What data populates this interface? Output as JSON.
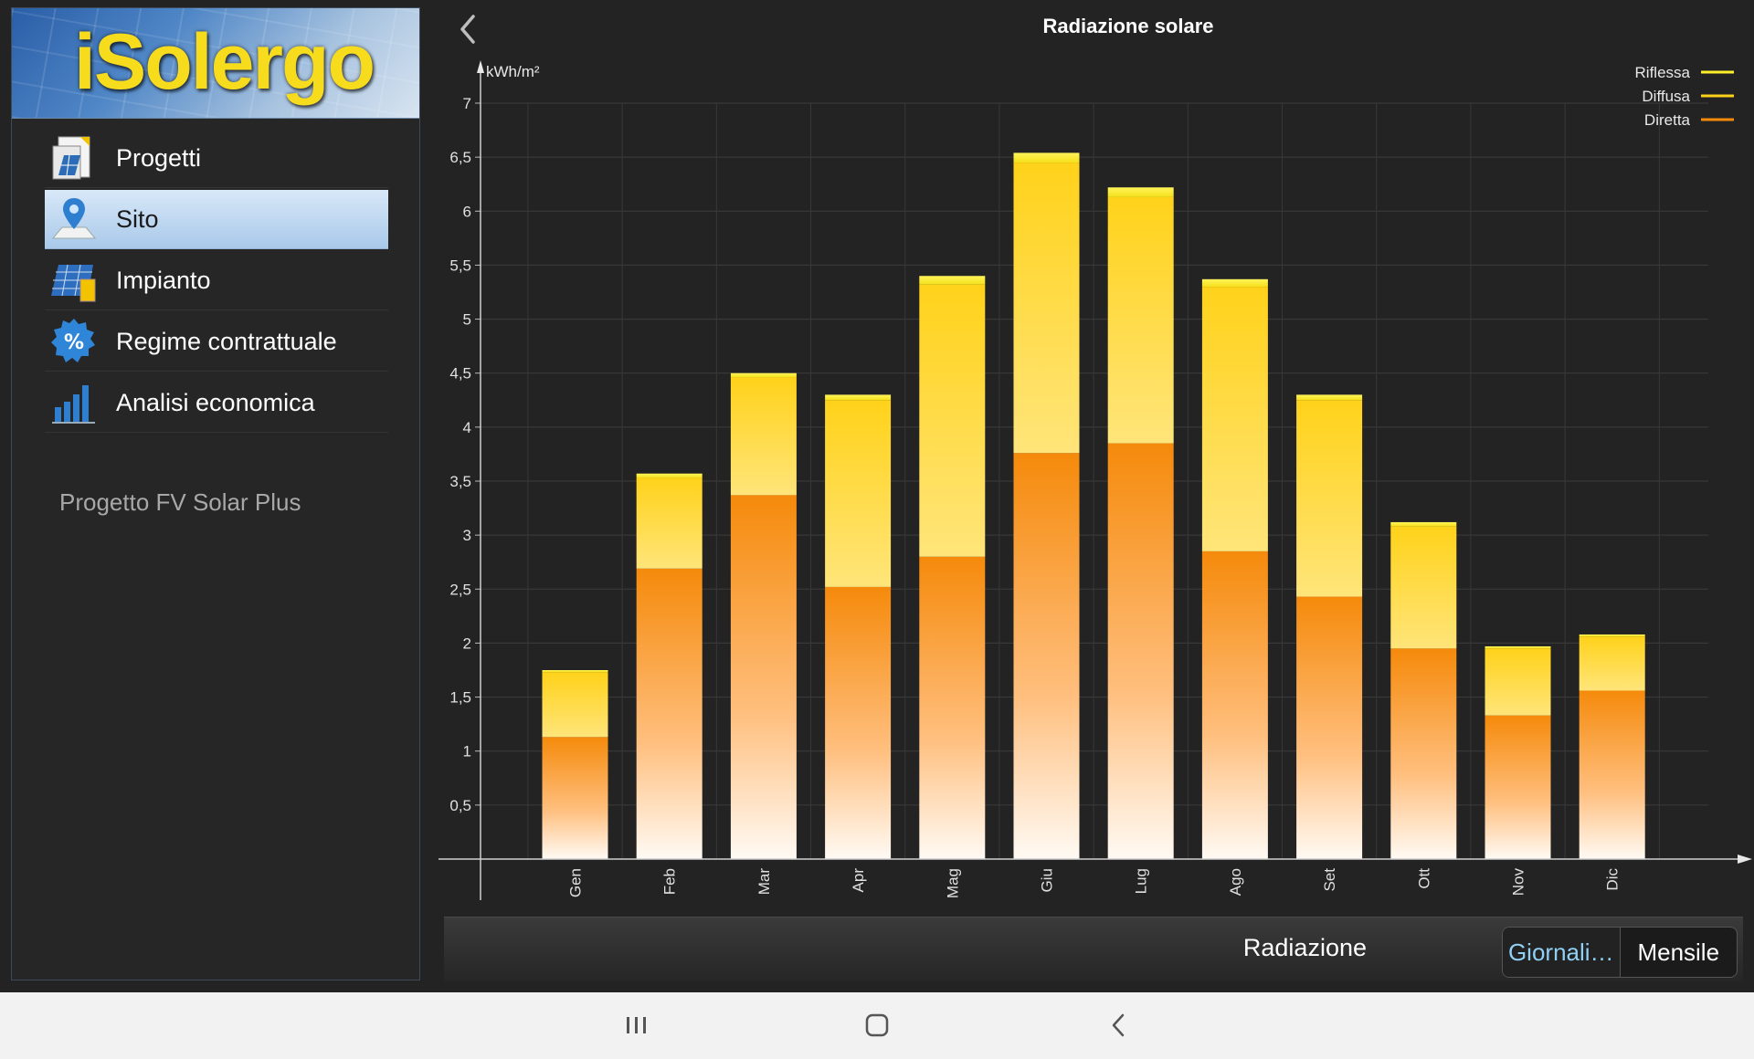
{
  "app": {
    "logo_text": "iSolergo"
  },
  "sidebar": {
    "items": [
      {
        "label": "Progetti",
        "icon": "projects-icon",
        "active": false
      },
      {
        "label": "Sito",
        "icon": "location-pin-icon",
        "active": true
      },
      {
        "label": "Impianto",
        "icon": "solar-panel-icon",
        "active": false
      },
      {
        "label": "Regime contrattuale",
        "icon": "percent-badge-icon",
        "active": false
      },
      {
        "label": "Analisi economica",
        "icon": "bar-chart-icon",
        "active": false
      }
    ],
    "project_name": "Progetto FV Solar Plus"
  },
  "header": {
    "title": "Radiazione solare"
  },
  "chart_data": {
    "type": "bar",
    "stacked": true,
    "title": "Radiazione solare",
    "ylabel": "kWh/m²",
    "xlabel": "",
    "ylim": [
      0,
      7
    ],
    "yticks": [
      "0,5",
      "1",
      "1,5",
      "2",
      "2,5",
      "3",
      "3,5",
      "4",
      "4,5",
      "5",
      "5,5",
      "6",
      "6,5",
      "7"
    ],
    "grid": true,
    "legend_position": "top-right",
    "categories": [
      "Gen",
      "Feb",
      "Mar",
      "Apr",
      "Mag",
      "Giu",
      "Lug",
      "Ago",
      "Set",
      "Ott",
      "Nov",
      "Dic"
    ],
    "series": [
      {
        "name": "Diretta",
        "color": "#f58a0b",
        "values": [
          1.13,
          2.69,
          3.37,
          2.52,
          2.8,
          3.76,
          3.85,
          2.85,
          2.43,
          1.95,
          1.33,
          1.56
        ]
      },
      {
        "name": "Diffusa",
        "color": "#ffd21a",
        "values": [
          0.6,
          0.84,
          1.09,
          1.73,
          2.52,
          2.69,
          2.28,
          2.45,
          1.82,
          1.13,
          0.62,
          0.5
        ]
      },
      {
        "name": "Riflessa",
        "color": "#fff02a",
        "values": [
          0.02,
          0.04,
          0.04,
          0.05,
          0.08,
          0.09,
          0.09,
          0.07,
          0.05,
          0.04,
          0.02,
          0.02
        ]
      }
    ]
  },
  "bottom_bar": {
    "label": "Radiazione",
    "segments": [
      {
        "label": "Giornali…",
        "selected": true
      },
      {
        "label": "Mensile",
        "selected": false
      }
    ]
  }
}
